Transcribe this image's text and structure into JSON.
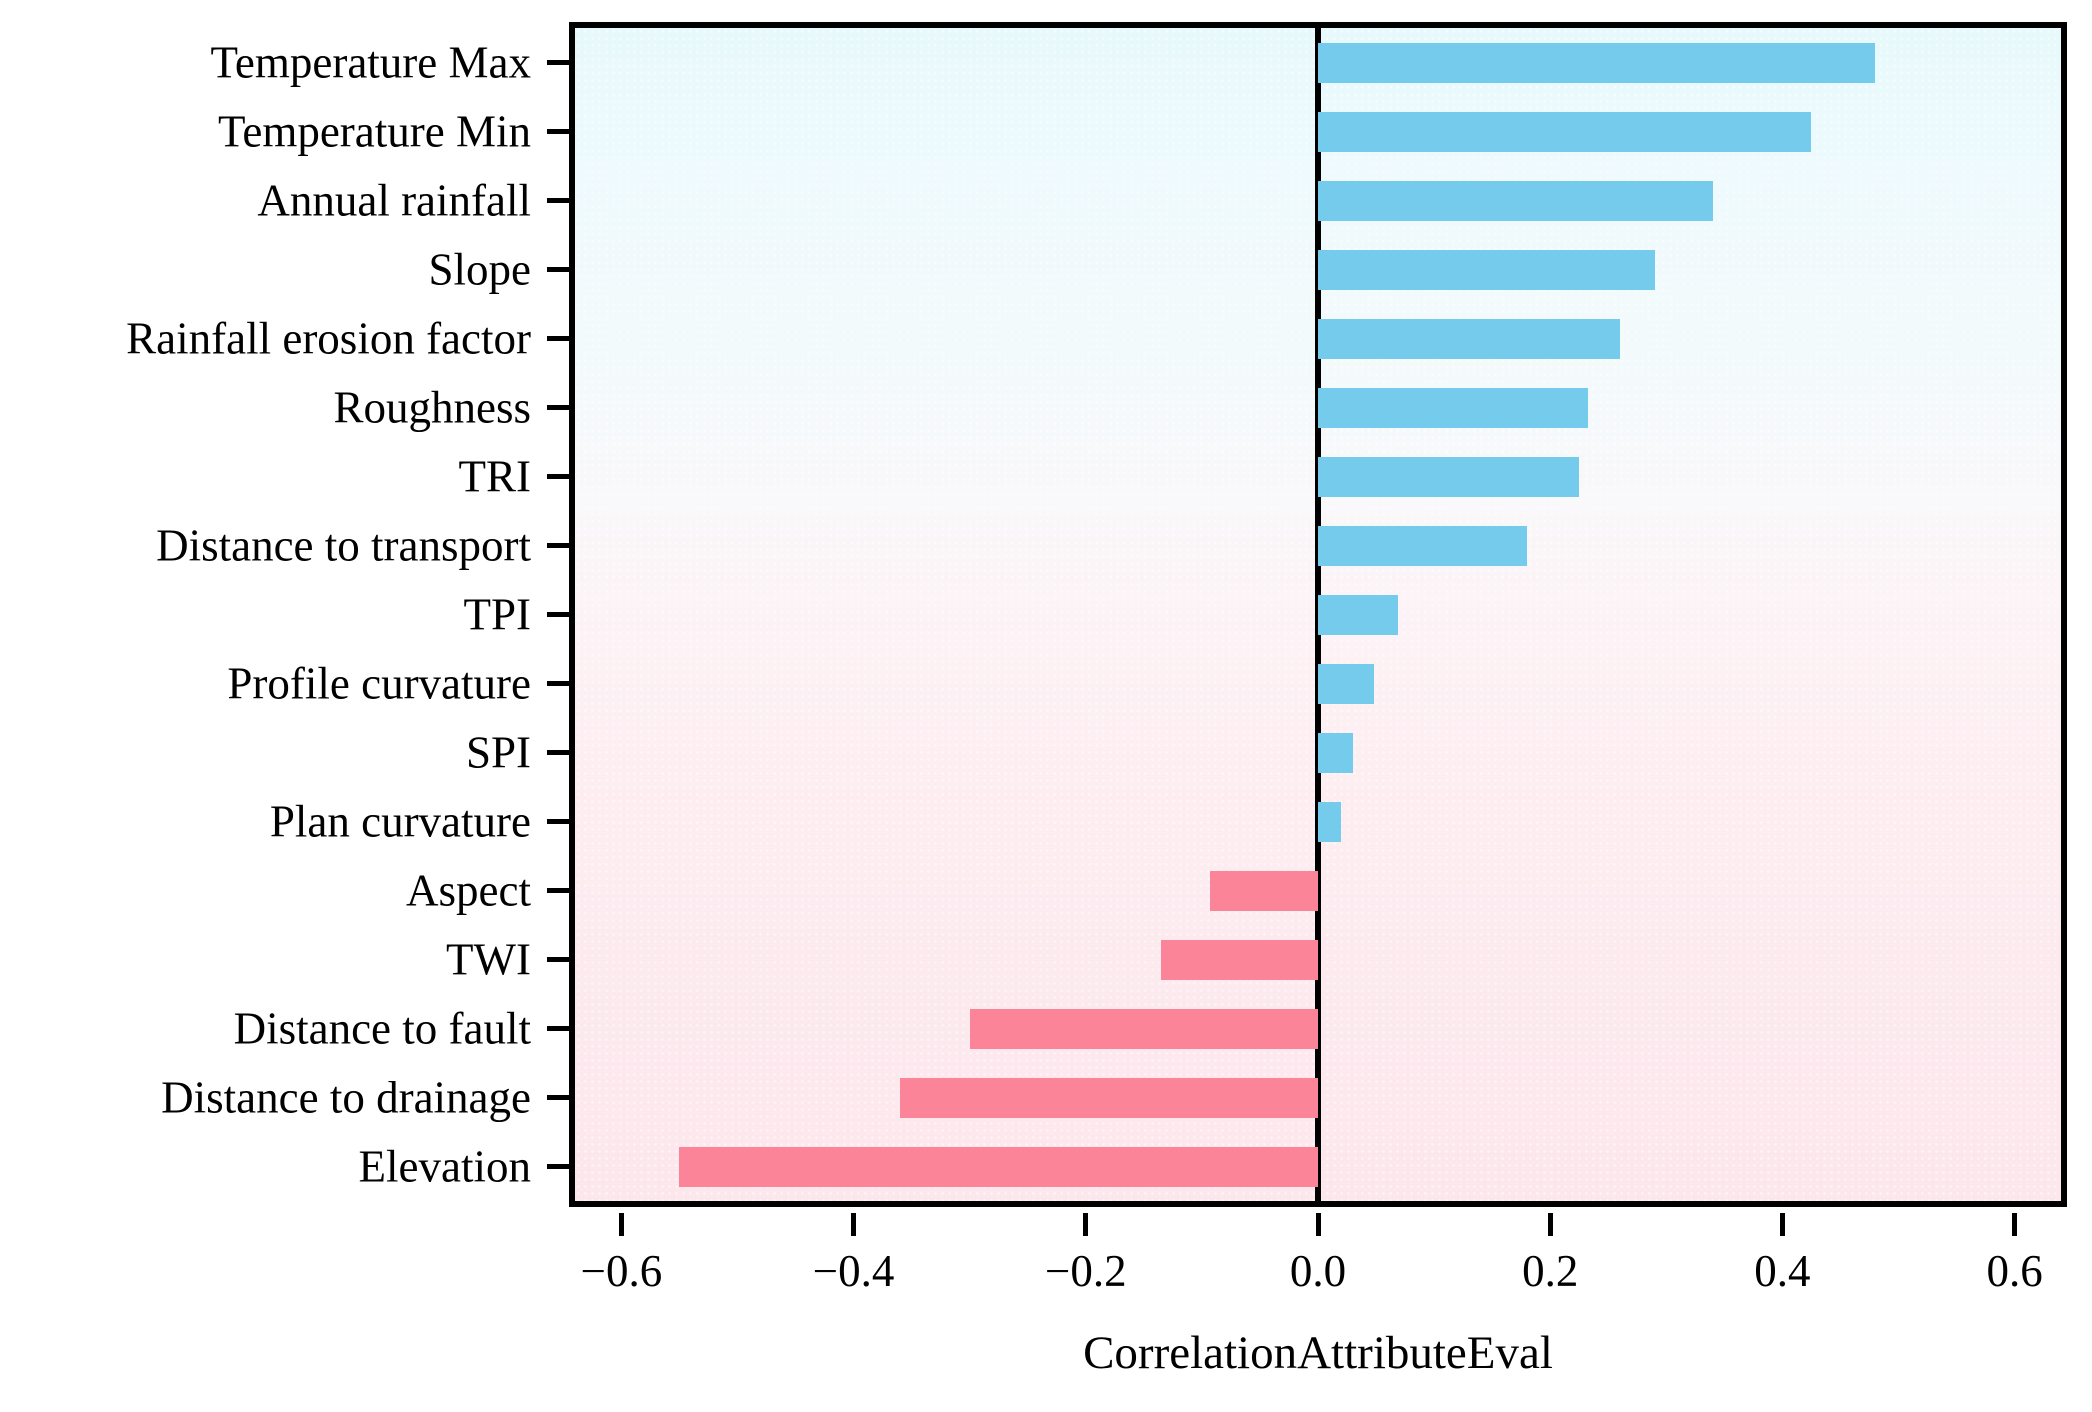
{
  "chart_data": {
    "type": "bar",
    "orientation": "horizontal",
    "title": "",
    "xlabel": "CorrelationAttributeEval",
    "ylabel": "",
    "xlim": [
      -0.64,
      0.64
    ],
    "grid": false,
    "legend": "none",
    "categories": [
      "Temperature Max",
      "Temperature Min",
      "Annual rainfall",
      "Slope",
      "Rainfall erosion factor",
      "Roughness",
      "TRI",
      "Distance to transport",
      "TPI",
      "Profile curvature",
      "SPI",
      "Plan curvature",
      "Aspect",
      "TWI",
      "Distance to fault",
      "Distance to drainage",
      "Elevation"
    ],
    "values": [
      0.48,
      0.425,
      0.34,
      0.29,
      0.26,
      0.233,
      0.225,
      0.18,
      0.069,
      0.048,
      0.03,
      0.02,
      -0.093,
      -0.135,
      -0.3,
      -0.36,
      -0.55
    ],
    "x_ticks": [
      {
        "value": -0.6,
        "label": "−0.6"
      },
      {
        "value": -0.4,
        "label": "−0.4"
      },
      {
        "value": -0.2,
        "label": "−0.2"
      },
      {
        "value": 0.0,
        "label": "0.0"
      },
      {
        "value": 0.2,
        "label": "0.2"
      },
      {
        "value": 0.4,
        "label": "0.4"
      },
      {
        "value": 0.6,
        "label": "0.6"
      }
    ],
    "colors": {
      "positive_bar": "#74cbec",
      "negative_bar": "#fb8498",
      "axis": "#000000",
      "background_top": "#e7f9fc",
      "background_bottom": "#fce7ec"
    }
  }
}
